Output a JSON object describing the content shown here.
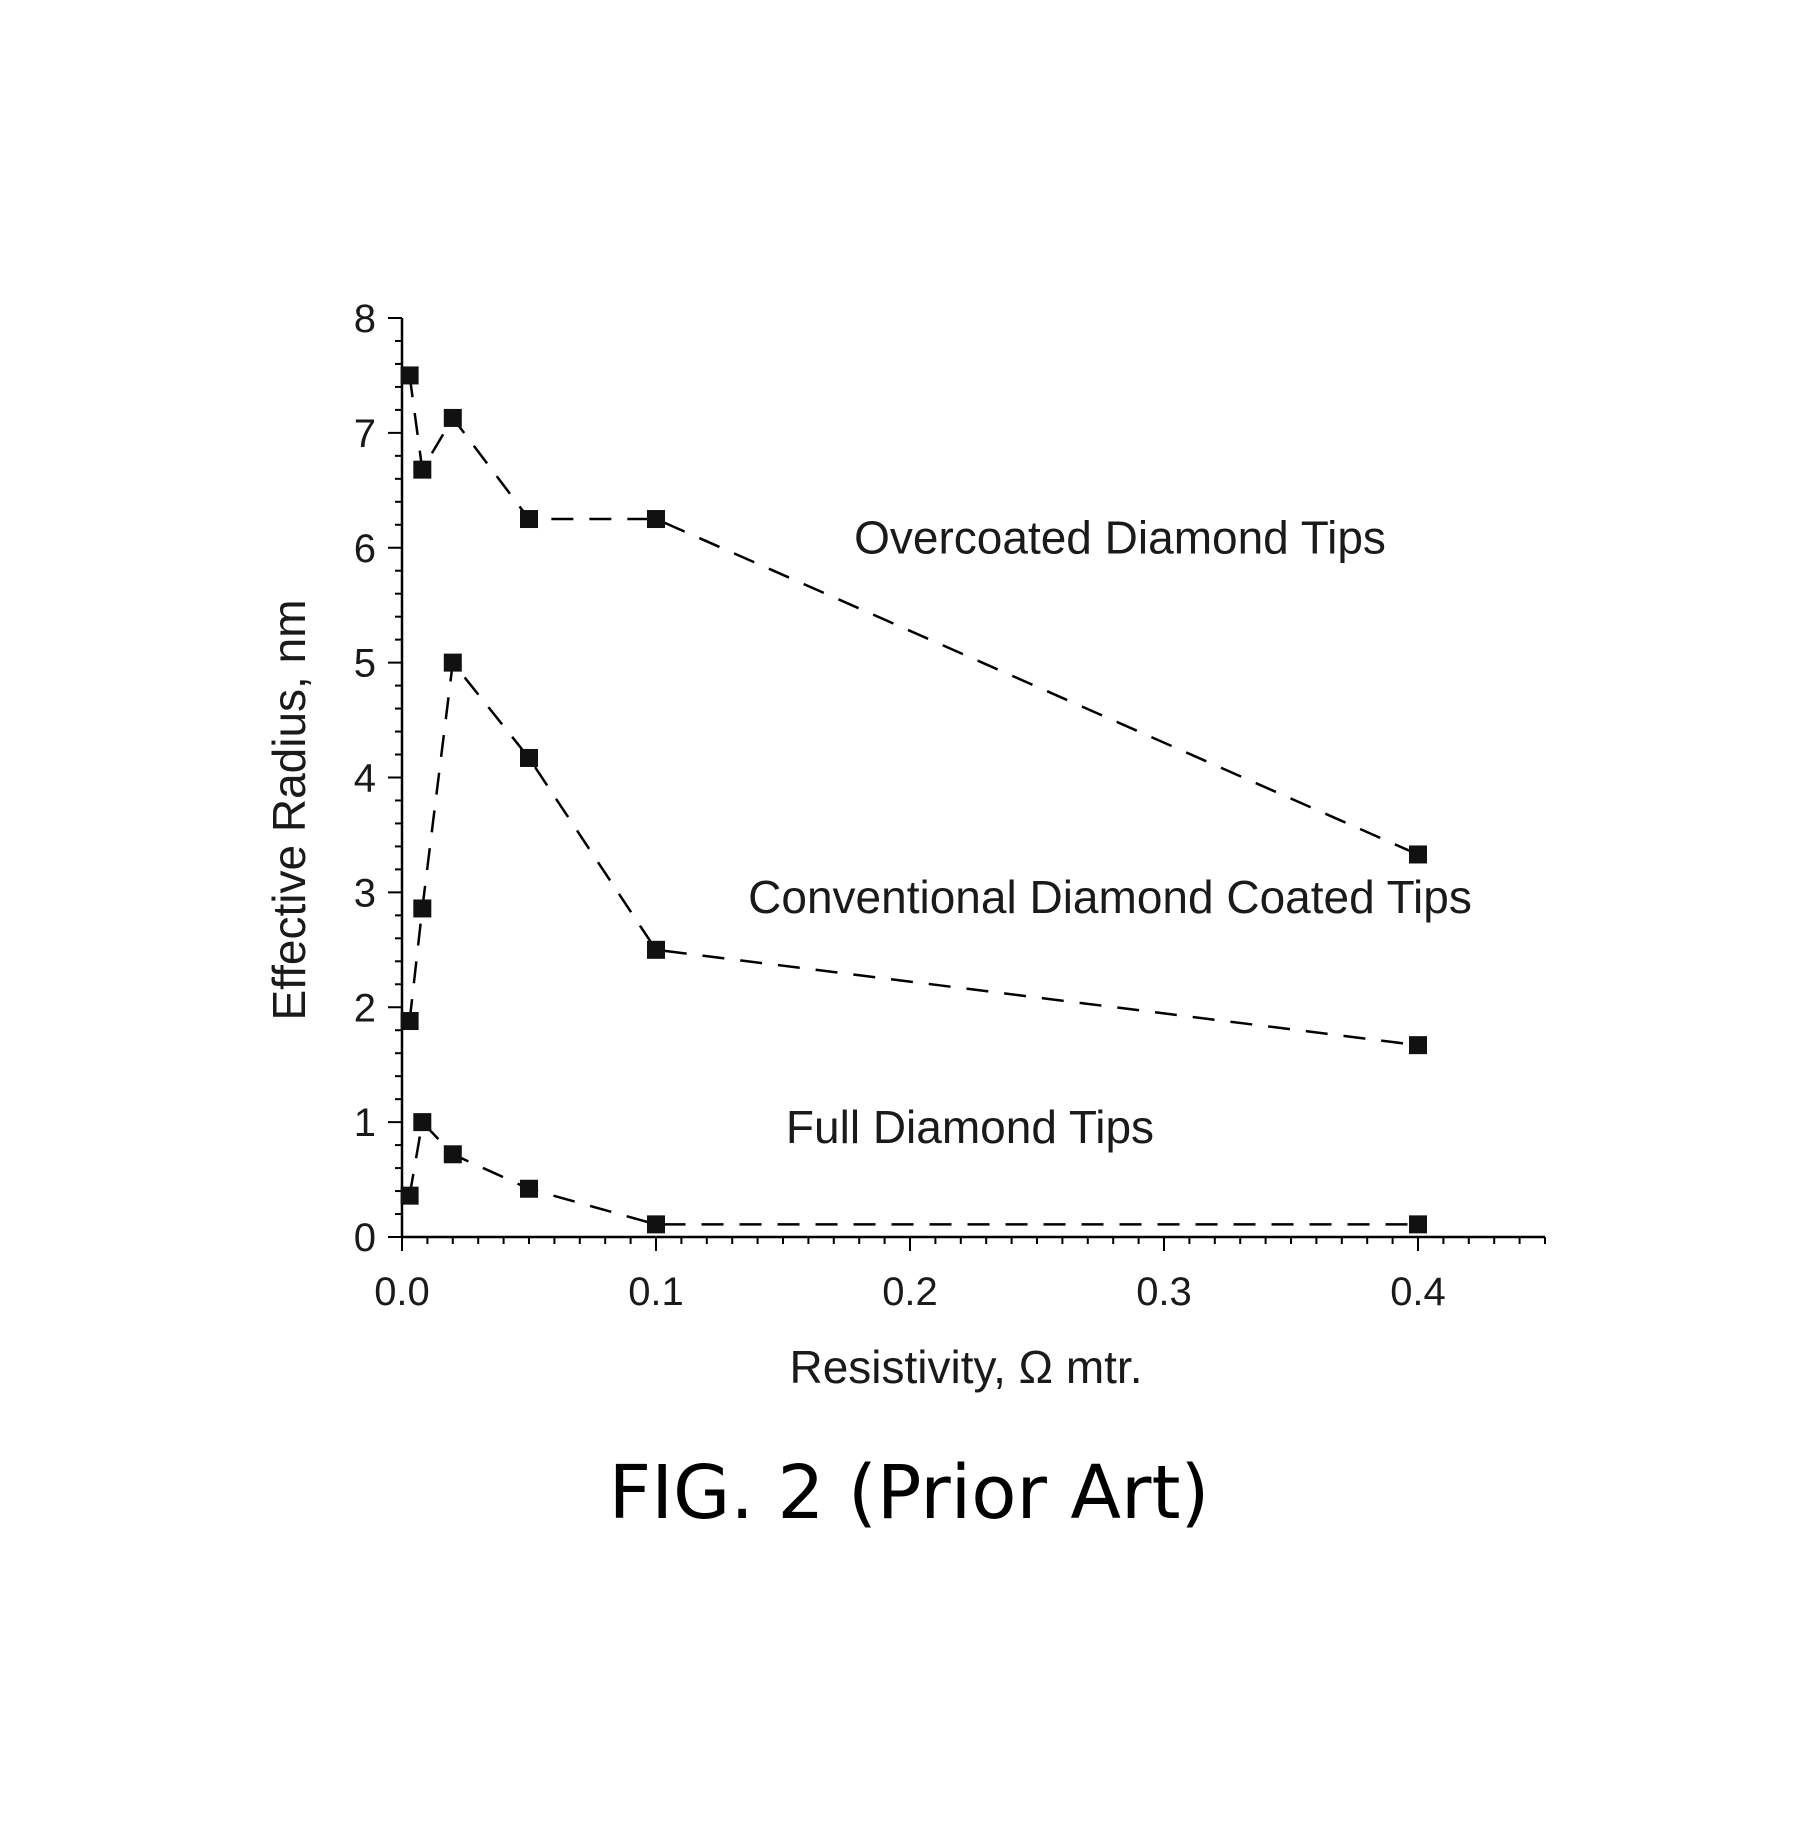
{
  "caption": "FIG. 2 (Prior Art)",
  "chart_data": {
    "type": "line",
    "title": "",
    "xlabel": "Resistivity, Ω mtr.",
    "ylabel": "Effective Radius, nm",
    "xlim": [
      0.0,
      0.45
    ],
    "ylim": [
      0,
      8
    ],
    "x_ticks": [
      0.0,
      0.1,
      0.2,
      0.3,
      0.4
    ],
    "x_tick_labels": [
      "0.0",
      "0.1",
      "0.2",
      "0.3",
      "0.4"
    ],
    "y_ticks": [
      0,
      1,
      2,
      3,
      4,
      5,
      6,
      7,
      8
    ],
    "y_tick_labels": [
      "0",
      "1",
      "2",
      "3",
      "4",
      "5",
      "6",
      "7",
      "8"
    ],
    "grid": false,
    "legend": "none",
    "series": [
      {
        "name": "Overcoated Diamond Tips",
        "x": [
          0.003,
          0.008,
          0.02,
          0.05,
          0.1,
          0.4
        ],
        "y": [
          7.5,
          6.68,
          7.13,
          6.25,
          6.25,
          3.33
        ]
      },
      {
        "name": "Conventional Diamond Coated Tips",
        "x": [
          0.003,
          0.008,
          0.02,
          0.05,
          0.1,
          0.4
        ],
        "y": [
          1.88,
          2.86,
          5.0,
          4.17,
          2.5,
          1.67
        ]
      },
      {
        "name": "Full Diamond Tips",
        "x": [
          0.003,
          0.008,
          0.02,
          0.05,
          0.1,
          0.4
        ],
        "y": [
          0.36,
          1.0,
          0.72,
          0.42,
          0.11,
          0.11
        ]
      }
    ]
  }
}
